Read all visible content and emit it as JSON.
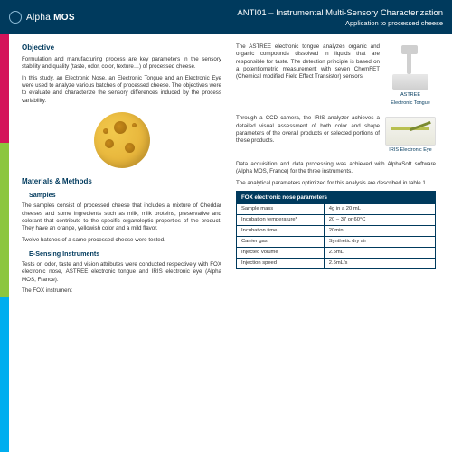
{
  "header": {
    "logo_a": "Alpha",
    "logo_b": "MOS",
    "title": "ANTI01 – Instrumental Multi-Sensory Characterization",
    "subtitle": "Application to processed cheese"
  },
  "left": {
    "objective_h": "Objective",
    "obj_p1": "Formulation and manufacturing process are key parameters in the sensory stability and quality (taste, odor, color, texture…) of processed cheese.",
    "obj_p2": "In this study, an Electronic Nose, an Electronic Tongue and an Electronic Eye were used to analyze various batches of processed cheese. The objectives were to evaluate and characterize the sensory differences induced by the process variability.",
    "mm_h": "Materials & Methods",
    "samples_h": "Samples",
    "samples_p1": "The samples consist of processed cheese that includes a mixture of Cheddar cheeses and some ingredients such as milk, milk proteins, preservative and colorant that contribute to the specific organoleptic properties of the product. They have an orange, yellowish color and a mild flavor.",
    "samples_p2": "Twelve batches of a same processed cheese were tested.",
    "esense_h": "E-Sensing Instruments",
    "esense_p1": "Tests on odor, taste and vision attributes were conducted respectively with FOX electronic nose, ASTREE electronic tongue and IRIS electronic eye (Alpha MOS, France).",
    "esense_p2": "The   FOX   instrument"
  },
  "right": {
    "astree_p": "The ASTREE electronic tongue analyzes organic and organic compounds dissolved in liquids that are responsible for taste. The detection principle is based on a potentiometric measurement with seven ChemFET (Chemical modified Field Effect Transistor) sensors.",
    "astree_cap1": "ASTREE",
    "astree_cap2": "Electronic Tongue",
    "iris_p": "Through a CCD camera, the IRIS analyzer achieves a detailed visual assessment of both color and shape parameters of the overall products or selected portions of these products.",
    "iris_cap": "IRIS Electronic Eye",
    "acq_p": "Data acquisition and data processing was achieved with AlphaSoft software (Alpha MOS, France) for the three instruments.",
    "params_p": "The analytical parameters optimized for this analysis are described in table 1.",
    "table_title": "FOX electronic nose parameters",
    "table": {
      "rows": [
        [
          "Sample mass",
          "4g in a 20 mL"
        ],
        [
          "Incubation temperature*",
          "20 – 37 or 60°C"
        ],
        [
          "Incubation time",
          "20min"
        ],
        [
          "Carrier gas",
          "Synthetic dry air"
        ],
        [
          "Injected volume",
          "2.5mL"
        ],
        [
          "Injection speed",
          "2.5mL/s"
        ]
      ]
    }
  },
  "colors": {
    "brand": "#003a5d",
    "red": "#d4145a",
    "green": "#8cc63f",
    "blue": "#00aeef"
  }
}
